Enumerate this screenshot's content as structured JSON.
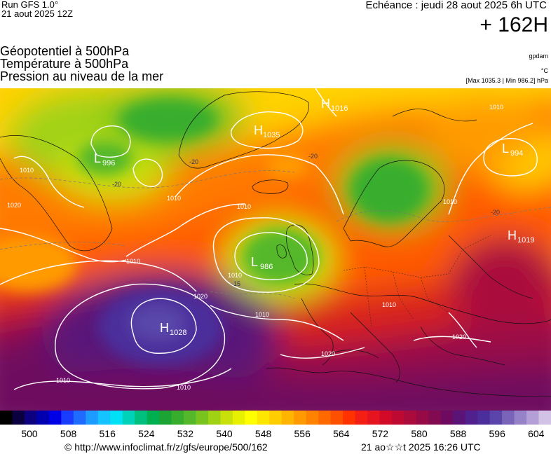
{
  "header": {
    "run_label": "Run GFS 1.0°",
    "run_date": "21 aout 2025 12Z",
    "forecast_label": "Echéance : jeudi 28 aout 2025 6h UTC",
    "lead_time": "+ 162H"
  },
  "titles": {
    "line1": "Géopotentiel à 500hPa",
    "line2": "Température à 500hPa",
    "line3": "Pression au niveau de la mer"
  },
  "units": {
    "geopotential": "gpdam",
    "temperature": "°C",
    "pressure": "[Max 1035.3 | Min 986.2] hPa"
  },
  "systems": [
    {
      "letter": "L",
      "value": "996"
    },
    {
      "letter": "H",
      "value": "1035"
    },
    {
      "letter": "H",
      "value": "1016"
    },
    {
      "letter": "L",
      "value": "994"
    },
    {
      "letter": "H",
      "value": "1019"
    },
    {
      "letter": "L",
      "value": "986"
    },
    {
      "letter": "H",
      "value": "1028"
    }
  ],
  "isobar_labels": [
    "1010",
    "1020",
    "1010",
    "1010",
    "1020",
    "1010",
    "1010",
    "1020",
    "1020",
    "1010",
    "1010",
    "1010",
    "1010",
    "1010",
    "1010"
  ],
  "isotherm_labels": [
    "-20",
    "-20",
    "-20",
    "-20",
    "-15"
  ],
  "scale": {
    "ticks": [
      "500",
      "508",
      "516",
      "524",
      "532",
      "540",
      "548",
      "556",
      "564",
      "572",
      "580",
      "588",
      "596",
      "604"
    ],
    "colors": [
      "#000000",
      "#0a0040",
      "#0d0080",
      "#0000b0",
      "#0000e6",
      "#1a3cff",
      "#1f6bff",
      "#1e9bff",
      "#14c3ff",
      "#00e1f5",
      "#00d2b9",
      "#00c080",
      "#00b050",
      "#1ba334",
      "#37ad2d",
      "#55b82a",
      "#78c31e",
      "#a0d214",
      "#c8e10a",
      "#e6f000",
      "#ffff00",
      "#ffe600",
      "#ffcd00",
      "#ffb400",
      "#ff9b00",
      "#ff8200",
      "#ff6900",
      "#ff5000",
      "#ff3200",
      "#f51e14",
      "#e6141e",
      "#d20a28",
      "#be0a32",
      "#aa0a3c",
      "#960a46",
      "#820a50",
      "#6e0a5f",
      "#5a1478",
      "#50208c",
      "#4b2d9b",
      "#5a46aa",
      "#7864b9",
      "#9682c8",
      "#b4a0d7",
      "#d2c3e6"
    ]
  },
  "footer": {
    "credit": "© http://www.infoclimat.fr/z/gfs/europe/500/162",
    "timestamp": "21 ao☆☆t 2025 16:26 UTC"
  }
}
